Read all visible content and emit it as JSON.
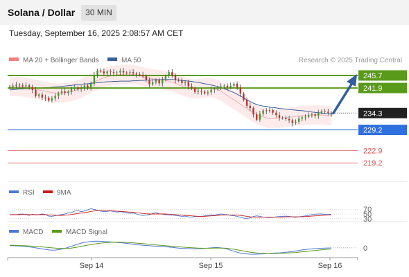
{
  "header": {
    "title": "Solana / Dollar",
    "timeframe": "30 MIN",
    "datetime": "Tuesday, September 16, 2025 2:08:57 AM CET"
  },
  "legend": {
    "bb_label": "MA 20 + Bollinger Bands",
    "ma50_label": "MA 50",
    "credit": "Research © 2025 Trading Central",
    "rsi_label": "RSI",
    "rsi_ma_label": "9MA",
    "macd_label": "MACD",
    "macd_signal_label": "MACD Signal"
  },
  "colors": {
    "bb": "#f08080",
    "ma50": "#3a5f9f",
    "resistance": "#5a9a1a",
    "pivot": "#222222",
    "support": "#2f6fe0",
    "target": "#e05050",
    "rsi": "#4a78d8",
    "rsi_ma": "#d01818",
    "macd": "#4a78d8",
    "macd_signal": "#5a9a1a"
  },
  "chart_data": [
    {
      "type": "candlestick",
      "title": "Solana / Dollar",
      "x_ticks": [
        "Sep 14",
        "Sep 15",
        "Sep 16"
      ],
      "ylim": [
        214,
        248
      ],
      "levels": [
        {
          "label": "245.7",
          "value": 245.7,
          "kind": "resistance"
        },
        {
          "label": "241.9",
          "value": 241.9,
          "kind": "resistance"
        },
        {
          "label": "234.3",
          "value": 234.3,
          "kind": "pivot"
        },
        {
          "label": "229.2",
          "value": 229.2,
          "kind": "support"
        },
        {
          "label": "222.9",
          "value": 222.9,
          "kind": "target"
        },
        {
          "label": "219.2",
          "value": 219.2,
          "kind": "target"
        }
      ],
      "close": [
        242.3,
        242.6,
        242.9,
        242.7,
        242.4,
        242.7,
        242.2,
        241.3,
        239.5,
        239.9,
        239.0,
        238.9,
        238.1,
        238.7,
        239.5,
        240.3,
        240.9,
        240.4,
        240.8,
        241.6,
        242.1,
        241.5,
        242.0,
        242.6,
        241.8,
        243.2,
        245.9,
        247.2,
        246.9,
        246.3,
        246.9,
        246.7,
        246.4,
        246.6,
        247.1,
        246.6,
        246.4,
        246.7,
        246.3,
        246.0,
        245.9,
        245.5,
        244.4,
        243.0,
        243.6,
        244.3,
        243.3,
        244.4,
        245.5,
        246.7,
        245.8,
        244.3,
        244.1,
        243.4,
        243.7,
        242.4,
        241.8,
        240.7,
        241.0,
        240.8,
        240.3,
        240.6,
        241.4,
        241.6,
        241.9,
        242.4,
        242.6,
        242.1,
        242.6,
        243.2,
        242.1,
        240.2,
        238.3,
        236.5,
        235.8,
        233.9,
        232.3,
        234.1,
        235.1,
        234.9,
        235.2,
        234.4,
        233.7,
        232.9,
        232.8,
        232.5,
        232.1,
        231.3,
        231.7,
        232.6,
        233.0,
        233.2,
        233.6,
        233.9,
        233.5,
        234.4,
        234.9,
        234.7,
        234.4,
        234.1
      ],
      "ma20": [
        242.3,
        242.3,
        242.4,
        242.3,
        242.2,
        242.1,
        241.9,
        241.7,
        241.5,
        241.3,
        241.1,
        240.9,
        240.7,
        240.5,
        240.4,
        240.4,
        240.4,
        240.5,
        240.6,
        240.8,
        241.1,
        241.4,
        241.8,
        242.3,
        242.8,
        243.3,
        243.8,
        244.2,
        244.6,
        245.0,
        245.3,
        245.5,
        245.7,
        245.9,
        246.0,
        246.1,
        246.1,
        246.1,
        246.0,
        245.8,
        245.6,
        245.3,
        245.1,
        244.9,
        244.7,
        244.6,
        244.5,
        244.3,
        244.2,
        244.0,
        243.7,
        243.3,
        242.9,
        242.5,
        242.2,
        241.9,
        241.7,
        241.6,
        241.7,
        241.8,
        241.9,
        242.0,
        242.0,
        241.8,
        241.4,
        240.9,
        240.3,
        239.6,
        238.9,
        238.3,
        237.7,
        237.0,
        236.3,
        235.7,
        235.0,
        234.4,
        233.9,
        233.4,
        233.1,
        232.8,
        232.6,
        232.6,
        232.7,
        232.7,
        232.8,
        232.9,
        233.1,
        233.1,
        233.3,
        233.4,
        233.5,
        233.6,
        233.7,
        233.7,
        233.8,
        233.8,
        233.7,
        233.6,
        233.5,
        233.5
      ],
      "ma50": [
        241.3,
        241.4,
        241.5,
        241.6,
        241.6,
        241.7,
        241.7,
        241.8,
        241.8,
        241.9,
        241.9,
        242.0,
        242.0,
        242.1,
        242.2,
        242.3,
        242.4,
        242.5,
        242.6,
        242.7,
        242.8,
        242.9,
        243.0,
        243.1,
        243.2,
        243.3,
        243.4,
        243.5,
        243.6,
        243.7,
        243.8,
        243.8,
        243.9,
        243.9,
        244.0,
        244.0,
        244.0,
        244.0,
        244.1,
        244.1,
        244.2,
        244.2,
        244.3,
        244.3,
        244.4,
        244.4,
        244.4,
        244.5,
        244.5,
        244.5,
        244.5,
        244.4,
        244.3,
        244.2,
        244.1,
        244.0,
        243.9,
        243.7,
        243.6,
        243.4,
        243.2,
        243.0,
        242.8,
        242.6,
        242.3,
        242.0,
        241.7,
        241.3,
        240.9,
        240.5,
        240.0,
        239.5,
        238.9,
        238.3,
        237.8,
        237.3,
        236.9,
        236.6,
        236.4,
        236.3,
        236.1,
        236.0,
        235.9,
        235.7,
        235.6,
        235.5,
        235.4,
        235.3,
        235.2,
        235.1,
        235.0,
        234.9,
        234.8,
        234.6,
        234.5,
        234.4,
        234.3,
        234.2,
        234.1,
        234.0
      ],
      "bb_halfwidth": 2.9
    },
    {
      "type": "line",
      "title": "RSI",
      "y_ticks": [
        70,
        50,
        30
      ],
      "ylim": [
        0,
        100
      ],
      "series": [
        {
          "name": "RSI",
          "values": [
            46,
            48,
            47,
            49,
            50,
            47,
            44,
            49,
            46,
            47,
            50,
            48,
            41,
            40,
            43,
            45,
            48,
            50,
            55,
            56,
            62,
            64,
            60,
            63,
            68,
            72,
            69,
            66,
            62,
            60,
            61,
            63,
            60,
            58,
            60,
            57,
            55,
            53,
            54,
            50,
            46,
            44,
            45,
            47,
            52,
            56,
            51,
            49,
            47,
            46,
            45,
            44,
            42,
            40,
            41,
            38,
            37,
            39,
            40,
            40,
            42,
            44,
            46,
            45,
            48,
            50,
            48,
            47,
            44,
            43,
            40,
            36,
            32,
            30,
            34,
            39,
            42,
            40,
            37,
            36,
            35,
            36,
            38,
            39,
            40,
            41,
            40,
            38,
            36,
            38,
            40,
            42,
            44,
            47,
            49,
            50,
            50,
            48,
            48,
            49
          ]
        },
        {
          "name": "9MA",
          "values": [
            47,
            47,
            47,
            47,
            48,
            48,
            47,
            47,
            47,
            47,
            47,
            47,
            46,
            45,
            45,
            44,
            44,
            45,
            46,
            48,
            50,
            52,
            54,
            56,
            58,
            61,
            63,
            64,
            64,
            64,
            64,
            64,
            63,
            62,
            61,
            60,
            59,
            58,
            57,
            55,
            54,
            52,
            51,
            50,
            50,
            50,
            50,
            50,
            50,
            49,
            48,
            47,
            46,
            45,
            44,
            43,
            42,
            41,
            40,
            40,
            40,
            41,
            42,
            43,
            44,
            45,
            46,
            46,
            46,
            46,
            45,
            44,
            42,
            40,
            38,
            37,
            37,
            37,
            37,
            37,
            37,
            37,
            37,
            37,
            37,
            38,
            38,
            38,
            38,
            38,
            38,
            39,
            40,
            41,
            42,
            43,
            44,
            45,
            46,
            47
          ]
        }
      ]
    },
    {
      "type": "line",
      "title": "MACD",
      "y_ticks": [
        0
      ],
      "ylim": [
        -1.6,
        2.1
      ],
      "series": [
        {
          "name": "MACD",
          "values": [
            0.4,
            0.4,
            0.38,
            0.35,
            0.3,
            0.25,
            0.18,
            0.1,
            0.0,
            -0.1,
            -0.2,
            -0.3,
            -0.4,
            -0.45,
            -0.42,
            -0.35,
            -0.25,
            -0.1,
            0.1,
            0.3,
            0.5,
            0.7,
            0.9,
            1.05,
            1.15,
            1.2,
            1.25,
            1.27,
            1.25,
            1.22,
            1.18,
            1.13,
            1.08,
            1.03,
            0.98,
            0.92,
            0.85,
            0.78,
            0.7,
            0.62,
            0.55,
            0.5,
            0.45,
            0.4,
            0.35,
            0.3,
            0.28,
            0.25,
            0.2,
            0.15,
            0.1,
            0.02,
            -0.05,
            -0.1,
            -0.12,
            -0.15,
            -0.18,
            -0.2,
            -0.18,
            -0.15,
            -0.1,
            -0.05,
            0.0,
            0.05,
            0.05,
            0.0,
            -0.1,
            -0.25,
            -0.45,
            -0.65,
            -0.85,
            -1.0,
            -1.1,
            -1.15,
            -1.2,
            -1.22,
            -1.2,
            -1.18,
            -1.15,
            -1.1,
            -1.05,
            -1.02,
            -0.98,
            -0.95,
            -0.9,
            -0.85,
            -0.78,
            -0.7,
            -0.6,
            -0.5,
            -0.4,
            -0.32,
            -0.25,
            -0.2,
            -0.15,
            -0.1,
            -0.08,
            -0.05,
            -0.03,
            -0.02
          ]
        },
        {
          "name": "MACD Signal",
          "values": [
            0.5,
            0.48,
            0.46,
            0.44,
            0.42,
            0.39,
            0.36,
            0.32,
            0.28,
            0.23,
            0.18,
            0.12,
            0.06,
            0.0,
            -0.05,
            -0.1,
            -0.12,
            -0.12,
            -0.1,
            -0.05,
            0.05,
            0.15,
            0.28,
            0.4,
            0.52,
            0.63,
            0.73,
            0.82,
            0.9,
            0.97,
            1.02,
            1.06,
            1.08,
            1.09,
            1.08,
            1.06,
            1.03,
            0.99,
            0.95,
            0.9,
            0.85,
            0.8,
            0.74,
            0.68,
            0.62,
            0.56,
            0.5,
            0.45,
            0.4,
            0.35,
            0.3,
            0.25,
            0.2,
            0.15,
            0.1,
            0.06,
            0.02,
            -0.02,
            -0.05,
            -0.07,
            -0.08,
            -0.08,
            -0.07,
            -0.05,
            -0.04,
            -0.04,
            -0.06,
            -0.1,
            -0.17,
            -0.26,
            -0.37,
            -0.49,
            -0.61,
            -0.72,
            -0.82,
            -0.9,
            -0.97,
            -1.02,
            -1.05,
            -1.07,
            -1.08,
            -1.08,
            -1.07,
            -1.05,
            -1.03,
            -1.0,
            -0.97,
            -0.93,
            -0.88,
            -0.82,
            -0.76,
            -0.7,
            -0.63,
            -0.56,
            -0.5,
            -0.44,
            -0.38,
            -0.32,
            -0.27,
            -0.22
          ]
        }
      ]
    }
  ]
}
